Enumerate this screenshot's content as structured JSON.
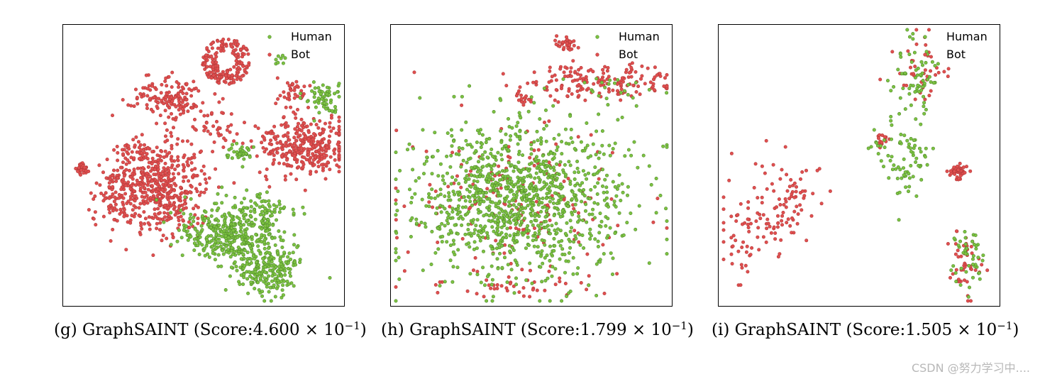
{
  "colors": {
    "human": "#7dc242",
    "human_edge": "#4f8a2a",
    "bot": "#e04f4f"
  },
  "legend": {
    "human": "Human",
    "bot": "Bot"
  },
  "panels": [
    {
      "caption_prefix": "(g)  GraphSAINT (Score:4.600 × 10",
      "caption_exp": "−1",
      "caption_suffix": ")"
    },
    {
      "caption_prefix": "(h)  GraphSAINT (Score:1.799 × 10",
      "caption_exp": "−1",
      "caption_suffix": ")"
    },
    {
      "caption_prefix": "(i)  GraphSAINT (Score:1.505 × 10",
      "caption_exp": "−1",
      "caption_suffix": ")"
    }
  ],
  "watermark": "CSDN @努力学习中....",
  "chart_data": [
    {
      "type": "scatter",
      "title": "(g) GraphSAINT (Score:4.600 × 10^−1)",
      "axes_visible": false,
      "legend_position": "top-right",
      "series": [
        {
          "name": "Human",
          "color": "#7dc242",
          "clusters": [
            {
              "cx": 0.93,
              "cy": 0.26,
              "sx": 0.035,
              "sy": 0.025,
              "n": 60
            },
            {
              "cx": 0.63,
              "cy": 0.46,
              "sx": 0.02,
              "sy": 0.015,
              "n": 40
            },
            {
              "cx": 0.6,
              "cy": 0.74,
              "sx": 0.09,
              "sy": 0.05,
              "n": 380
            },
            {
              "cx": 0.72,
              "cy": 0.87,
              "sx": 0.06,
              "sy": 0.04,
              "n": 220
            },
            {
              "cx": 0.72,
              "cy": 0.67,
              "sx": 0.04,
              "sy": 0.03,
              "n": 60
            },
            {
              "cx": 0.77,
              "cy": 0.12,
              "sx": 0.012,
              "sy": 0.025,
              "n": 8
            }
          ]
        },
        {
          "name": "Bot",
          "color": "#e04f4f",
          "clusters": [
            {
              "cx": 0.36,
              "cy": 0.58,
              "sx": 0.07,
              "sy": 0.08,
              "n": 420
            },
            {
              "cx": 0.38,
              "cy": 0.27,
              "sx": 0.07,
              "sy": 0.04,
              "n": 150
            },
            {
              "cx": 0.2,
              "cy": 0.6,
              "sx": 0.05,
              "sy": 0.06,
              "n": 120
            },
            {
              "cx": 0.86,
              "cy": 0.43,
              "sx": 0.08,
              "sy": 0.05,
              "n": 330
            },
            {
              "cx": 0.82,
              "cy": 0.25,
              "sx": 0.03,
              "sy": 0.03,
              "n": 40
            },
            {
              "cx": 0.25,
              "cy": 0.46,
              "sx": 0.04,
              "sy": 0.025,
              "n": 50
            },
            {
              "cx": 0.07,
              "cy": 0.51,
              "sx": 0.012,
              "sy": 0.012,
              "n": 40
            },
            {
              "cx": 0.56,
              "cy": 0.38,
              "sx": 0.04,
              "sy": 0.03,
              "n": 30
            }
          ],
          "ring": {
            "cx": 0.58,
            "cy": 0.13,
            "r": 0.085,
            "n": 190
          }
        }
      ]
    },
    {
      "type": "scatter",
      "title": "(h) GraphSAINT (Score:1.799 × 10^−1)",
      "axes_visible": false,
      "legend_position": "top-right",
      "series": [
        {
          "name": "Human",
          "color": "#7dc242",
          "clusters": [
            {
              "cx": 0.45,
              "cy": 0.62,
              "sx": 0.2,
              "sy": 0.14,
              "n": 1100
            },
            {
              "cx": 0.78,
              "cy": 0.23,
              "sx": 0.07,
              "sy": 0.03,
              "n": 20
            }
          ]
        },
        {
          "name": "Bot",
          "color": "#e04f4f",
          "clusters": [
            {
              "cx": 0.76,
              "cy": 0.2,
              "sx": 0.13,
              "sy": 0.03,
              "n": 160
            },
            {
              "cx": 0.62,
              "cy": 0.07,
              "sx": 0.02,
              "sy": 0.015,
              "n": 30
            },
            {
              "cx": 0.45,
              "cy": 0.6,
              "sx": 0.2,
              "sy": 0.15,
              "n": 180
            },
            {
              "cx": 0.45,
              "cy": 0.93,
              "sx": 0.15,
              "sy": 0.02,
              "n": 40
            },
            {
              "cx": 0.46,
              "cy": 0.26,
              "sx": 0.02,
              "sy": 0.015,
              "n": 15
            }
          ]
        }
      ]
    },
    {
      "type": "scatter",
      "title": "(i) GraphSAINT (Score:1.505 × 10^−1)",
      "axes_visible": false,
      "legend_position": "top-right",
      "series": [
        {
          "name": "Human",
          "color": "#7dc242",
          "clusters": [
            {
              "cx": 0.7,
              "cy": 0.18,
              "sx": 0.04,
              "sy": 0.07,
              "n": 60
            },
            {
              "cx": 0.68,
              "cy": 0.48,
              "sx": 0.04,
              "sy": 0.08,
              "n": 70
            },
            {
              "cx": 0.88,
              "cy": 0.83,
              "sx": 0.03,
              "sy": 0.07,
              "n": 45
            },
            {
              "cx": 0.56,
              "cy": 0.42,
              "sx": 0.02,
              "sy": 0.02,
              "n": 10
            }
          ]
        },
        {
          "name": "Bot",
          "color": "#e04f4f",
          "clusters": [
            {
              "cx": 0.2,
              "cy": 0.66,
              "sx": 0.07,
              "sy": 0.12,
              "n": 140,
              "tilt": 0.75
            },
            {
              "cx": 0.71,
              "cy": 0.15,
              "sx": 0.04,
              "sy": 0.06,
              "n": 40
            },
            {
              "cx": 0.85,
              "cy": 0.52,
              "sx": 0.015,
              "sy": 0.015,
              "n": 50
            },
            {
              "cx": 0.88,
              "cy": 0.84,
              "sx": 0.03,
              "sy": 0.07,
              "n": 45
            },
            {
              "cx": 0.58,
              "cy": 0.41,
              "sx": 0.015,
              "sy": 0.02,
              "n": 15
            }
          ]
        }
      ]
    }
  ]
}
